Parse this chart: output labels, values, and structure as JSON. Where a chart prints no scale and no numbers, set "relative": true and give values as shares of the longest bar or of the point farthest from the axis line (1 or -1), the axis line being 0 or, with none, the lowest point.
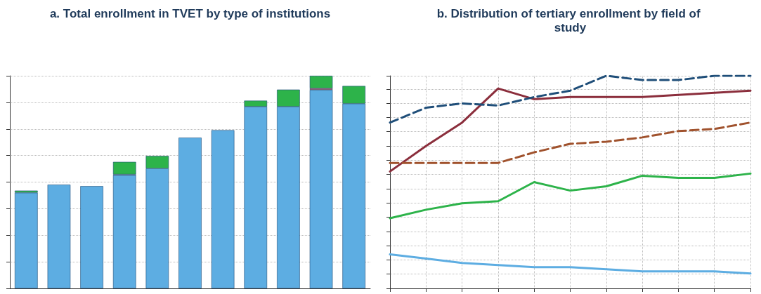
{
  "chart_data": [
    {
      "type": "bar",
      "title": "a. Total enrollment in TVET by type of institutions",
      "relative": true,
      "stacked": true,
      "grid": "y",
      "categories": [
        null,
        null,
        null,
        null,
        null,
        null,
        null,
        null,
        null,
        null,
        null
      ],
      "series": [
        {
          "color": "#5dade2",
          "values": [
            0.45,
            0.488,
            0.481,
            0.533,
            0.564,
            0.709,
            0.744,
            0.855,
            0.855,
            0.934,
            0.869
          ]
        },
        {
          "color": "#e0404a",
          "values": [
            null,
            null,
            null,
            0.003,
            null,
            null,
            null,
            null,
            null,
            0.007,
            null
          ]
        },
        {
          "color": "#2db34a",
          "values": [
            0.01,
            null,
            null,
            0.059,
            0.059,
            null,
            null,
            0.028,
            0.08,
            0.059,
            0.083
          ]
        }
      ]
    },
    {
      "type": "line",
      "title": "b. Distribution of tertiary enrollment by field of study",
      "relative": true,
      "grid": true,
      "marker": "none",
      "categories": [
        null,
        null,
        null,
        null,
        null,
        null,
        null,
        null,
        null,
        null,
        null
      ],
      "series": [
        {
          "color": "#8b2e3c",
          "line_style": "solid",
          "values": [
            0.55,
            0.67,
            0.78,
            0.94,
            0.89,
            0.9,
            0.9,
            0.9,
            0.91,
            0.92,
            0.93
          ]
        },
        {
          "color": "#2db34a",
          "line_style": "solid",
          "values": [
            0.33,
            0.37,
            0.4,
            0.41,
            0.5,
            0.46,
            0.48,
            0.53,
            0.52,
            0.52,
            0.54
          ]
        },
        {
          "color": "#1f4e79",
          "line_style": "dashed",
          "values": [
            0.78,
            0.85,
            0.87,
            0.86,
            0.9,
            0.93,
            1,
            0.98,
            0.98,
            1,
            1
          ]
        },
        {
          "color": "#a0522d",
          "line_style": "dashed",
          "values": [
            0.59,
            0.59,
            0.59,
            0.59,
            0.64,
            0.68,
            0.69,
            0.71,
            0.74,
            0.75,
            0.78
          ]
        },
        {
          "color": "#5dade2",
          "line_style": "solid",
          "values": [
            0.16,
            0.14,
            0.12,
            0.11,
            0.1,
            0.1,
            0.09,
            0.08,
            0.08,
            0.08,
            0.07
          ]
        }
      ]
    }
  ]
}
